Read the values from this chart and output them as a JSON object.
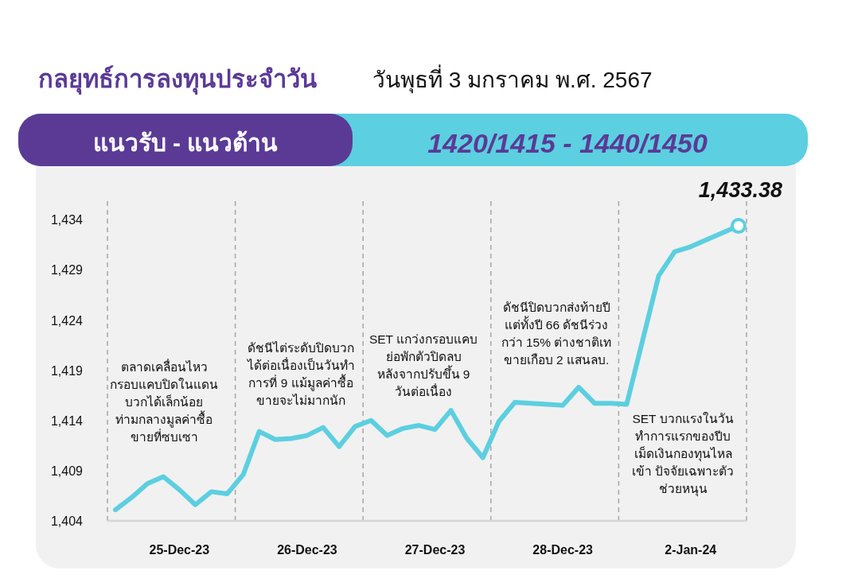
{
  "chart_data": {
    "type": "line",
    "title": "กลยุทธ์การลงทุนประจำวัน",
    "subtitle": "วันพุธที่ 3 มกราคม พ.ศ. 2567",
    "categories": [
      null,
      null,
      null,
      null,
      "25-Dec-23",
      null,
      null,
      null,
      null,
      null,
      null,
      null,
      "26-Dec-23",
      null,
      null,
      null,
      null,
      null,
      null,
      null,
      "27-Dec-23",
      null,
      null,
      null,
      null,
      null,
      null,
      null,
      "28-Dec-23",
      null,
      null,
      null,
      null,
      null,
      null,
      null,
      "2-Jan-24",
      null,
      null,
      null
    ],
    "series": [
      {
        "color": "#5ccfe0",
        "values": [
          1405.1,
          1406.3,
          1407.7,
          1408.4,
          1407.1,
          1405.6,
          1406.9,
          1406.7,
          1408.6,
          1412.9,
          1412.1,
          1412.2,
          1412.5,
          1413.3,
          1411.4,
          1413.4,
          1414.0,
          1412.5,
          1413.2,
          1413.5,
          1413.1,
          1415.0,
          1412.2,
          1410.3,
          1413.9,
          1415.8,
          1415.7,
          1415.6,
          1415.5,
          1417.3,
          1415.7,
          1415.7,
          1415.6,
          1422.0,
          1428.4,
          1430.8,
          1431.3,
          1432.0,
          1432.7,
          1433.38
        ]
      }
    ],
    "ylim": [
      1404,
      1436
    ],
    "yticks": [
      {
        "value": 1404,
        "label": "1,404"
      },
      {
        "value": 1409,
        "label": "1,409"
      },
      {
        "value": 1414,
        "label": "1,414"
      },
      {
        "value": 1419,
        "label": "1,419"
      },
      {
        "value": 1424,
        "label": "1,424"
      },
      {
        "value": 1429,
        "label": "1,429"
      },
      {
        "value": 1434,
        "label": "1,434"
      }
    ],
    "annotations": [
      "แนวรับ - แนวต้าน",
      "1420/1415 -  1440/1450",
      "ตลาดเคลื่อนไหว\nกรอบแคบปิดในแดน\nบวกได้เล็กน้อย\nท่ามกลางมูลค่าซื้อ\nขายที่ซบเซา",
      "ดัชนีไต่ระดับปิดบวก\nได้ต่อเนื่องเป็นวันทำ\nการที่ 9 แม้มูลค่าซื้อ\nขายจะไม่มากนัก",
      "SET แกว่งกรอบแคบ\nย่อพักตัวปิดลบ\nหลังจากปรับขึ้น 9\nวันต่อเนื่อง",
      "ดัชนีปิดบวกส่งท้ายปี\nแต่ทั้งปี 66 ดัชนีร่วง\nกว่า 15% ต่างชาติเท\nขายเกือบ 2 แสนลบ.",
      "SET บวกแรงในวัน\nทำการแรกของปีบ\nเม็ดเงินกองทุนไหล\nเข้า ปัจจัยเฉพาะตัว\nช่วยหนุน",
      {
        "text": "1,433.38",
        "y": 1433.38
      }
    ],
    "grid": false,
    "marker": "none",
    "line_style": "solid"
  }
}
